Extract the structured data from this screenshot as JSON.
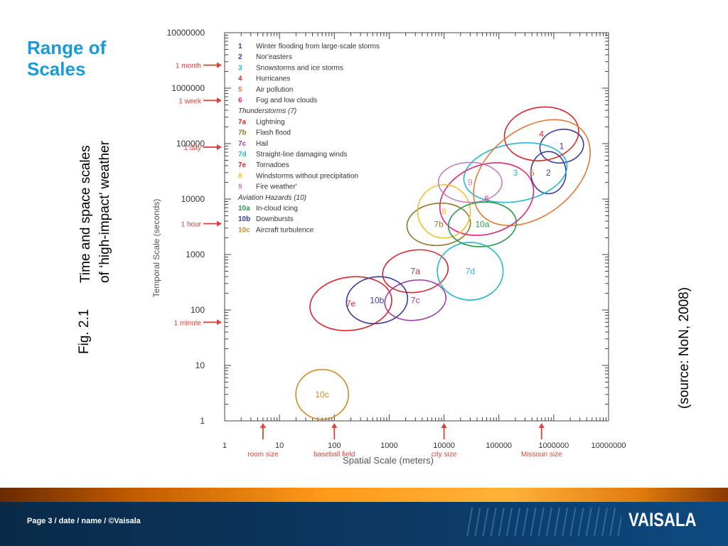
{
  "slide": {
    "title_line1": "Range of",
    "title_line2": "Scales",
    "figure_label": "Fig. 2.1",
    "caption_line1": "Time and space scales",
    "caption_line2": "of ‘high-impact’ weather",
    "source": "(source: NoN, 2008)"
  },
  "footer": {
    "text": "Page 3 / date / name / ©Vaisala",
    "brand": "VAISALA"
  },
  "colors": {
    "title": "#1a9ad6",
    "red_annotations": "#e0403a",
    "footer_bar": "#0c3a66",
    "footer_band": "#ff9a1a"
  },
  "chart_data": {
    "type": "scatter",
    "xlabel": "Spatial Scale (meters)",
    "ylabel": "Temporal Scale (seconds)",
    "xscale": "log",
    "yscale": "log",
    "xlim": [
      1,
      10000000
    ],
    "ylim": [
      1,
      10000000
    ],
    "x_ticks": [
      "1",
      "10",
      "100",
      "1000",
      "10000",
      "100000",
      "1000000",
      "10000000"
    ],
    "y_ticks": [
      "1",
      "10",
      "100",
      "1000",
      "10000",
      "100000",
      "1000000",
      "10000000"
    ],
    "legend": [
      {
        "code": "1",
        "label": "Winter flooding from large-scale storms",
        "color": "#3a3aa0"
      },
      {
        "code": "2",
        "label": "Nor'easters",
        "color": "#3a3aa0"
      },
      {
        "code": "3",
        "label": "Snowstorms and ice storms",
        "color": "#22b8d0"
      },
      {
        "code": "4",
        "label": "Hurricanes",
        "color": "#d8262e"
      },
      {
        "code": "5",
        "label": "Air pollution",
        "color": "#e07a3a"
      },
      {
        "code": "6",
        "label": "Fog and low clouds",
        "color": "#e0267a"
      },
      {
        "code": "",
        "label": "Thunderstorms (7)",
        "color": "#333333",
        "group": true
      },
      {
        "code": "7a",
        "label": "Lightning",
        "color": "#d8262e"
      },
      {
        "code": "7b",
        "label": "Flash flood",
        "color": "#8a7a2a"
      },
      {
        "code": "7c",
        "label": "Hail",
        "color": "#a03aa0"
      },
      {
        "code": "7d",
        "label": "Straight-line damaging winds",
        "color": "#22b8d0"
      },
      {
        "code": "7e",
        "label": "Tornadoes",
        "color": "#d8262e"
      },
      {
        "code": "8",
        "label": "Windstorms without precipitation",
        "color": "#f0c030"
      },
      {
        "code": "9",
        "label": "Fire weather'",
        "color": "#c080c0"
      },
      {
        "code": "",
        "label": "Aviation Hazards (10)",
        "color": "#333333",
        "group": true
      },
      {
        "code": "10a",
        "label": "In-cloud icing",
        "color": "#2a9a4a"
      },
      {
        "code": "10b",
        "label": "Downbursts",
        "color": "#3a3aa0"
      },
      {
        "code": "10c",
        "label": "Aircraft turbulence",
        "color": "#d08a2a"
      }
    ],
    "regions": [
      {
        "label": "1",
        "x": 1400000,
        "y": 90000,
        "color": "#3a3aa0"
      },
      {
        "label": "2",
        "x": 800000,
        "y": 30000,
        "color": "#3a3aa0"
      },
      {
        "label": "3",
        "x": 200000,
        "y": 30000,
        "color": "#22b8d0"
      },
      {
        "label": "4",
        "x": 600000,
        "y": 150000,
        "color": "#d8262e"
      },
      {
        "label": "5",
        "x": 400000,
        "y": 30000,
        "color": "#e07a3a"
      },
      {
        "label": "6",
        "x": 60000,
        "y": 10000,
        "color": "#e0267a"
      },
      {
        "label": "7a",
        "x": 3000,
        "y": 500,
        "color": "#d8262e"
      },
      {
        "label": "7b",
        "x": 8000,
        "y": 3500,
        "color": "#8a7a2a"
      },
      {
        "label": "7c",
        "x": 3000,
        "y": 150,
        "color": "#a03aa0"
      },
      {
        "label": "7d",
        "x": 30000,
        "y": 500,
        "color": "#22b8d0"
      },
      {
        "label": "7e",
        "x": 200,
        "y": 130,
        "color": "#d8262e"
      },
      {
        "label": "8",
        "x": 10000,
        "y": 6000,
        "color": "#f0c030"
      },
      {
        "label": "9",
        "x": 30000,
        "y": 20000,
        "color": "#c080c0"
      },
      {
        "label": "10a",
        "x": 50000,
        "y": 3500,
        "color": "#2a9a4a"
      },
      {
        "label": "10b",
        "x": 600,
        "y": 150,
        "color": "#3a3aa0"
      },
      {
        "label": "10c",
        "x": 60,
        "y": 3,
        "color": "#d08a2a"
      }
    ],
    "annotations": {
      "y": [
        {
          "label": "1 month",
          "y": 2600000
        },
        {
          "label": "1 week",
          "y": 600000
        },
        {
          "label": "1 day",
          "y": 86400
        },
        {
          "label": "1 hour",
          "y": 3600
        },
        {
          "label": "1 minute",
          "y": 60
        }
      ],
      "x": [
        {
          "label": "room size",
          "x": 5
        },
        {
          "label": "baseball field",
          "x": 100
        },
        {
          "label": "city size",
          "x": 10000
        },
        {
          "label": "Missouri size",
          "x": 600000
        }
      ]
    }
  }
}
